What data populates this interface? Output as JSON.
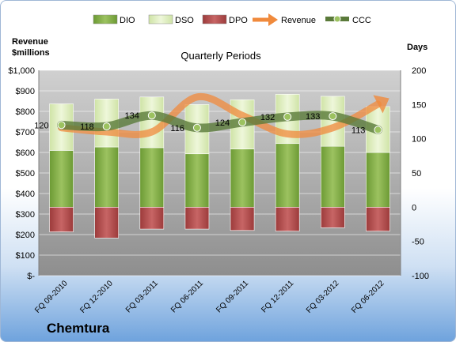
{
  "chart_data": {
    "type": "bar",
    "title": "Quarterly Periods",
    "company": "Chemtura",
    "left_axis_title": [
      "Revenue",
      "$millions"
    ],
    "right_axis_title": "Days",
    "categories": [
      "FQ 09-2010",
      "FQ 12-2010",
      "FQ 03-2011",
      "FQ 06-2011",
      "FQ 09-2011",
      "FQ 12-2011",
      "FQ 03-2012",
      "FQ 06-2012"
    ],
    "left_ylim": [
      0,
      1000
    ],
    "left_ticks": [
      "$-",
      "$100",
      "$200",
      "$300",
      "$400",
      "$500",
      "$600",
      "$700",
      "$800",
      "$900",
      "$1,000"
    ],
    "right_ylim": [
      -100,
      200
    ],
    "right_ticks": [
      "-100",
      "-50",
      "0",
      "50",
      "100",
      "150",
      "200"
    ],
    "series": [
      {
        "name": "DIO",
        "color": "#7fa845",
        "values": [
          83,
          88,
          87,
          78,
          85,
          93,
          89,
          80
        ]
      },
      {
        "name": "DSO",
        "color": "#e2f0c4",
        "values": [
          68,
          70,
          74,
          72,
          72,
          72,
          73,
          67
        ]
      },
      {
        "name": "DPO",
        "color": "#b04a4a",
        "values": [
          -36,
          -45,
          -32,
          -32,
          -34,
          -35,
          -30,
          -35
        ]
      },
      {
        "name": "Revenue",
        "color": "#f08a3c",
        "values": [
          720,
          700,
          700,
          870,
          780,
          690,
          720,
          835
        ]
      },
      {
        "name": "CCC",
        "color": "#5a7a3a",
        "values": [
          120,
          118,
          134,
          116,
          124,
          132,
          133,
          113
        ]
      }
    ],
    "ccc_labels": [
      "120",
      "118",
      "134",
      "116",
      "124",
      "132",
      "133",
      "113"
    ],
    "grid": true,
    "legend_position": "top"
  }
}
